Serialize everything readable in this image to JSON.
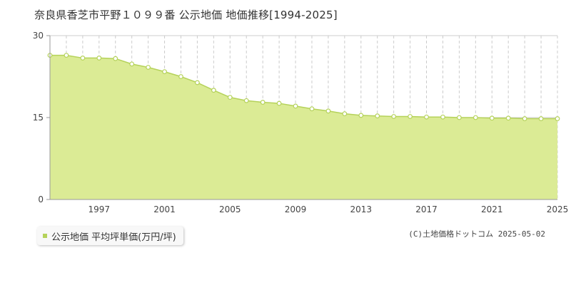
{
  "title": "奈良県香芝市平野１０９９番 公示地価 地価推移[1994-2025]",
  "legend_label": "公示地価 平均坪単価(万円/坪)",
  "copyright": "(C)土地価格ドットコム 2025-05-02",
  "colors": {
    "fill": "#dbeb95",
    "line": "#b5d25a",
    "point_fill": "#ffffff",
    "legend_swatch": "#b5d25a",
    "axis": "#999999",
    "grid": "#cccccc"
  },
  "chart_data": {
    "type": "area",
    "title": "奈良県香芝市平野１０９９番 公示地価 地価推移[1994-2025]",
    "xlabel": "",
    "ylabel": "",
    "x": [
      1994,
      1995,
      1996,
      1997,
      1998,
      1999,
      2000,
      2001,
      2002,
      2003,
      2004,
      2005,
      2006,
      2007,
      2008,
      2009,
      2010,
      2011,
      2012,
      2013,
      2014,
      2015,
      2016,
      2017,
      2018,
      2019,
      2020,
      2021,
      2022,
      2023,
      2024,
      2025
    ],
    "series": [
      {
        "name": "公示地価 平均坪単価(万円/坪)",
        "values": [
          26.4,
          26.4,
          25.9,
          25.9,
          25.8,
          24.8,
          24.2,
          23.4,
          22.5,
          21.4,
          20.0,
          18.7,
          18.1,
          17.8,
          17.6,
          17.1,
          16.6,
          16.2,
          15.7,
          15.4,
          15.3,
          15.2,
          15.2,
          15.1,
          15.1,
          15.0,
          15.0,
          14.9,
          14.9,
          14.8,
          14.8,
          14.8
        ]
      }
    ],
    "ylim": [
      0,
      30
    ],
    "xlim": [
      1994,
      2025
    ],
    "y_ticks": [
      "0",
      "15",
      "30"
    ],
    "x_ticks": [
      "1997",
      "2001",
      "2005",
      "2009",
      "2013",
      "2017",
      "2021",
      "2025"
    ],
    "grid": true,
    "legend_position": "bottom-left"
  }
}
